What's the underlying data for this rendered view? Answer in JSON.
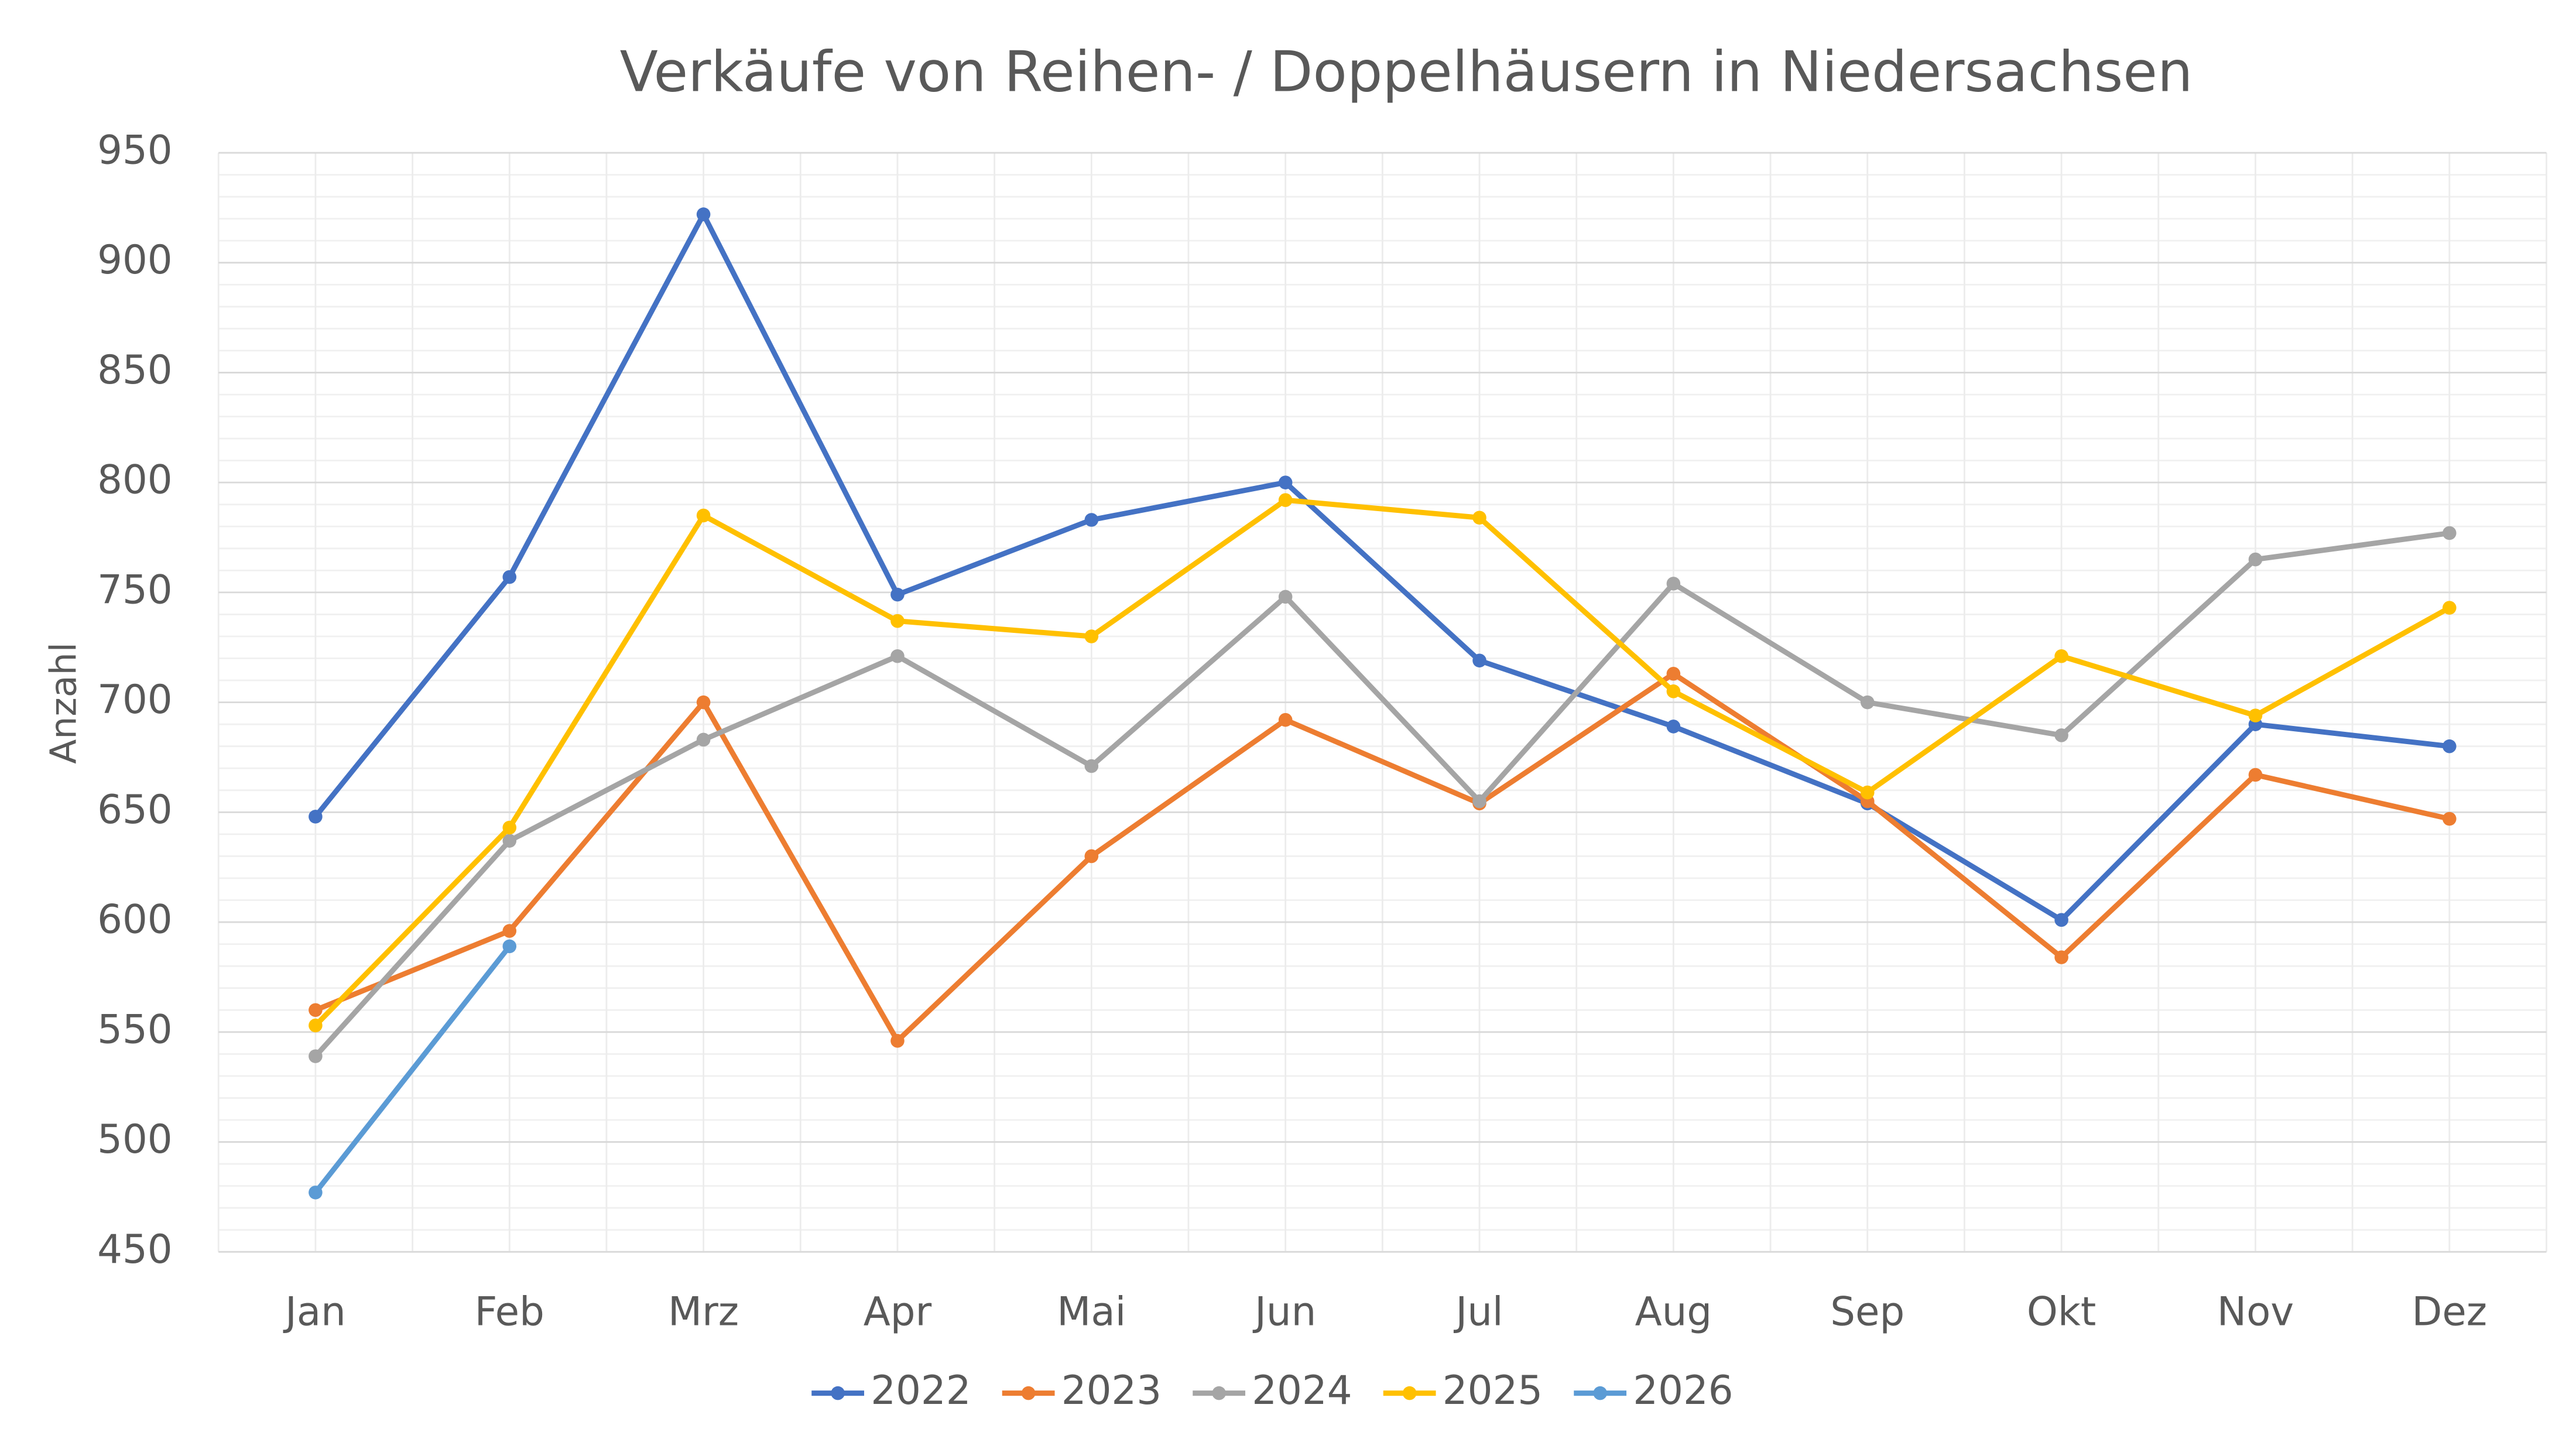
{
  "chart_data": {
    "type": "line",
    "title": "Verkäufe von Reihen- / Doppelhäusern in Niedersachsen",
    "y_label": "Anzahl",
    "categories": [
      "Jan",
      "Feb",
      "Mrz",
      "Apr",
      "Mai",
      "Jun",
      "Jul",
      "Aug",
      "Sep",
      "Okt",
      "Nov",
      "Dez"
    ],
    "series": [
      {
        "name": "2022",
        "color": "#4472c4",
        "values": [
          648,
          757,
          922,
          749,
          783,
          800,
          719,
          689,
          654,
          601,
          690,
          680
        ]
      },
      {
        "name": "2023",
        "color": "#ed7d31",
        "values": [
          560,
          596,
          700,
          546,
          630,
          692,
          654,
          713,
          655,
          584,
          667,
          647
        ]
      },
      {
        "name": "2024",
        "color": "#a5a5a5",
        "values": [
          539,
          637,
          683,
          721,
          671,
          748,
          655,
          754,
          700,
          685,
          765,
          777
        ]
      },
      {
        "name": "2025",
        "color": "#ffc000",
        "values": [
          553,
          643,
          785,
          737,
          730,
          792,
          784,
          705,
          659,
          721,
          694,
          743
        ]
      },
      {
        "name": "2026",
        "color": "#5b9bd5",
        "values": [
          477,
          589,
          null,
          null,
          null,
          null,
          null,
          null,
          null,
          null,
          null,
          null
        ]
      }
    ],
    "ylim": [
      450,
      950
    ],
    "yticks": [
      450,
      500,
      550,
      600,
      650,
      700,
      750,
      800,
      850,
      900,
      950
    ],
    "grid": true,
    "legend": "bottom"
  }
}
